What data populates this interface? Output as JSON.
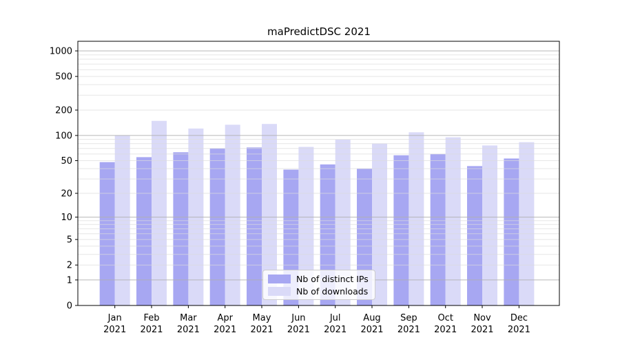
{
  "chart_data": {
    "type": "bar",
    "title": "maPredictDSC 2021",
    "xlabel": "",
    "ylabel": "",
    "categories": [
      "Jan 2021",
      "Feb 2021",
      "Mar 2021",
      "Apr 2021",
      "May 2021",
      "Jun 2021",
      "Jul 2021",
      "Aug 2021",
      "Sep 2021",
      "Oct 2021",
      "Nov 2021",
      "Dec 2021"
    ],
    "series": [
      {
        "name": "Nb of distinct IPs",
        "color": "#a7a7f2",
        "values": [
          48,
          55,
          63,
          70,
          72,
          39,
          45,
          40,
          58,
          60,
          43,
          53
        ]
      },
      {
        "name": "Nb of downloads",
        "color": "#dadaf8",
        "values": [
          100,
          149,
          121,
          134,
          137,
          73,
          89,
          80,
          109,
          95,
          76,
          83
        ]
      }
    ],
    "yscale": "log1p",
    "ylim": [
      0,
      1000
    ],
    "yticks": [
      0,
      1,
      2,
      5,
      10,
      20,
      50,
      100,
      200,
      500,
      1000
    ],
    "minor_gridlines": [
      2,
      3,
      4,
      5,
      6,
      7,
      8,
      9,
      20,
      30,
      40,
      50,
      60,
      70,
      80,
      90,
      200,
      300,
      400,
      500,
      600,
      700,
      800,
      900
    ],
    "major_gridlines": [
      1,
      10,
      100,
      1000
    ],
    "grid": "horizontal, drawn above bars",
    "legend_position": "inside-bottom-center",
    "colors": {
      "axis": "#000000",
      "major_grid": "#b0b0b0",
      "minor_grid": "#dcdcdc",
      "text": "#000000",
      "background": "#ffffff"
    }
  }
}
